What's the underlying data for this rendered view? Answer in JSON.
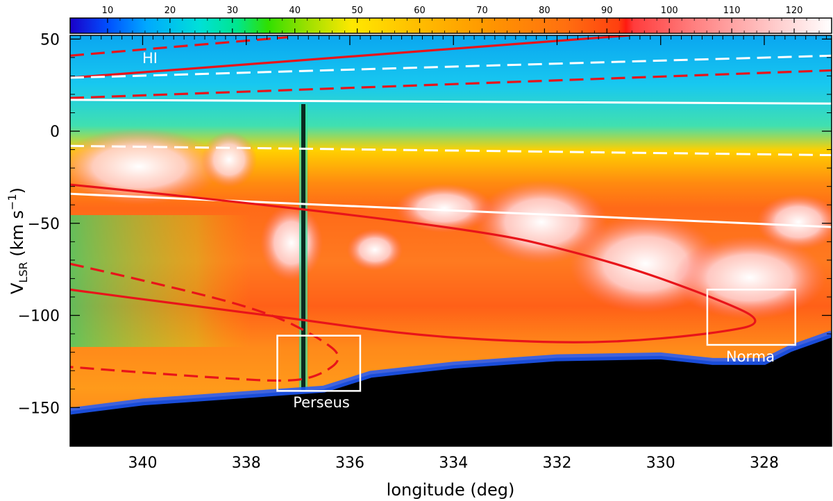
{
  "chart_data": {
    "type": "heatmap",
    "title": "",
    "xlabel": "longitude (deg)",
    "ylabel_main": "V",
    "ylabel_sub": "LSR",
    "ylabel_units_pre": " (km s",
    "ylabel_units_sup": "−1",
    "ylabel_units_post": ")",
    "xlim": [
      341.4,
      326.7
    ],
    "ylim": [
      -171,
      52
    ],
    "x_ticks": [
      340,
      338,
      336,
      334,
      332,
      330,
      328
    ],
    "y_ticks": [
      50,
      0,
      -50,
      -100,
      -150
    ],
    "x_tick_labels": [
      "340",
      "338",
      "336",
      "334",
      "332",
      "330",
      "328"
    ],
    "y_tick_labels": [
      "50",
      "0",
      "−50",
      "−100",
      "−150"
    ],
    "colorbar": {
      "range": [
        4,
        126
      ],
      "ticks": [
        10,
        20,
        30,
        40,
        50,
        60,
        70,
        80,
        90,
        100,
        110,
        120
      ],
      "tick_labels": [
        "10",
        "20",
        "30",
        "40",
        "50",
        "60",
        "70",
        "80",
        "90",
        "100",
        "110",
        "120"
      ]
    },
    "emission_lower_edge": [
      {
        "l": 341.4,
        "v": -152
      },
      {
        "l": 340,
        "v": -147
      },
      {
        "l": 338,
        "v": -143
      },
      {
        "l": 336.5,
        "v": -140
      },
      {
        "l": 335.6,
        "v": -132
      },
      {
        "l": 334,
        "v": -127
      },
      {
        "l": 332,
        "v": -123
      },
      {
        "l": 330,
        "v": -122
      },
      {
        "l": 329,
        "v": -125
      },
      {
        "l": 328,
        "v": -125
      },
      {
        "l": 327.5,
        "v": -118
      },
      {
        "l": 326.7,
        "v": -110
      }
    ],
    "curves": [
      {
        "style": "red-solid",
        "points": [
          [
            341.4,
            29
          ],
          [
            330.6,
            52
          ]
        ]
      },
      {
        "style": "red-dashed",
        "points": [
          [
            341.4,
            41
          ],
          [
            337.2,
            51
          ]
        ]
      },
      {
        "style": "red-dashed",
        "points": [
          [
            341.4,
            18
          ],
          [
            326.7,
            33
          ]
        ]
      },
      {
        "style": "white-dashed",
        "points": [
          [
            341.4,
            29
          ],
          [
            326.7,
            41
          ]
        ]
      },
      {
        "style": "white-solid",
        "points": [
          [
            341.4,
            17
          ],
          [
            326.7,
            15
          ]
        ]
      },
      {
        "style": "white-dashed",
        "points": [
          [
            341.4,
            -8
          ],
          [
            326.7,
            -13
          ]
        ]
      },
      {
        "style": "white-solid",
        "points": [
          [
            341.4,
            -34
          ],
          [
            326.7,
            -52
          ]
        ]
      },
      {
        "style": "red-solid",
        "points": [
          [
            341.4,
            -29
          ],
          [
            334,
            -50
          ],
          [
            331,
            -70
          ],
          [
            329,
            -90
          ],
          [
            327.9,
            -104
          ],
          [
            329,
            -110
          ],
          [
            331,
            -115
          ],
          [
            333,
            -114
          ],
          [
            335,
            -110
          ],
          [
            337,
            -102
          ],
          [
            339,
            -95
          ],
          [
            341.4,
            -86
          ]
        ]
      },
      {
        "style": "red-dashed",
        "points": [
          [
            341.4,
            -72
          ],
          [
            339.5,
            -84
          ],
          [
            337.6,
            -98
          ],
          [
            336.6,
            -112
          ],
          [
            336.1,
            -123
          ],
          [
            336.6,
            -133
          ],
          [
            337.2,
            -136
          ],
          [
            338.5,
            -134
          ],
          [
            340,
            -131
          ],
          [
            341.4,
            -128
          ]
        ]
      }
    ],
    "annotations": {
      "hi": "HI",
      "perseus": "Perseus",
      "norma": "Norma"
    },
    "boxes": [
      {
        "label": "Perseus",
        "l_range": [
          337.4,
          335.8
        ],
        "v_range": [
          -141,
          -111
        ]
      },
      {
        "label": "Norma",
        "l_range": [
          329.1,
          327.4
        ],
        "v_range": [
          -116,
          -86
        ]
      }
    ]
  }
}
